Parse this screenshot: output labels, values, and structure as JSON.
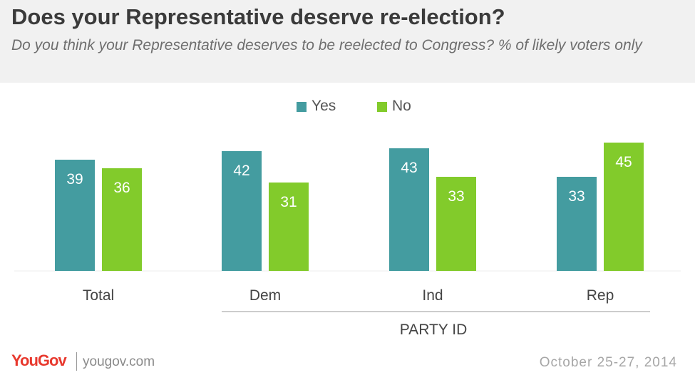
{
  "header": {
    "title": "Does your Representative deserve re-election?",
    "subtitle": "Do you think your Representative deserves to be reelected to Congress? % of likely voters only"
  },
  "colors": {
    "yes": "#449ca0",
    "no": "#82cb2b",
    "header_bg": "#f1f1f1"
  },
  "legend": {
    "yes": "Yes",
    "no": "No"
  },
  "chart_data": {
    "type": "bar",
    "title": "Does your Representative deserve re-election?",
    "subtitle": "Do you think your Representative deserves to be reelected to Congress? % of likely voters only",
    "categories": [
      "Total",
      "Dem",
      "Ind",
      "Rep"
    ],
    "group_label": "PARTY ID",
    "series": [
      {
        "name": "Yes",
        "values": [
          39,
          42,
          43,
          33
        ]
      },
      {
        "name": "No",
        "values": [
          36,
          31,
          33,
          45
        ]
      }
    ],
    "ylim": [
      0,
      50
    ],
    "grid": false,
    "legend": "top-center",
    "data_labels": true
  },
  "footer": {
    "logo": "YouGov",
    "site": "yougov.com",
    "date": "October 25-27, 2014"
  }
}
